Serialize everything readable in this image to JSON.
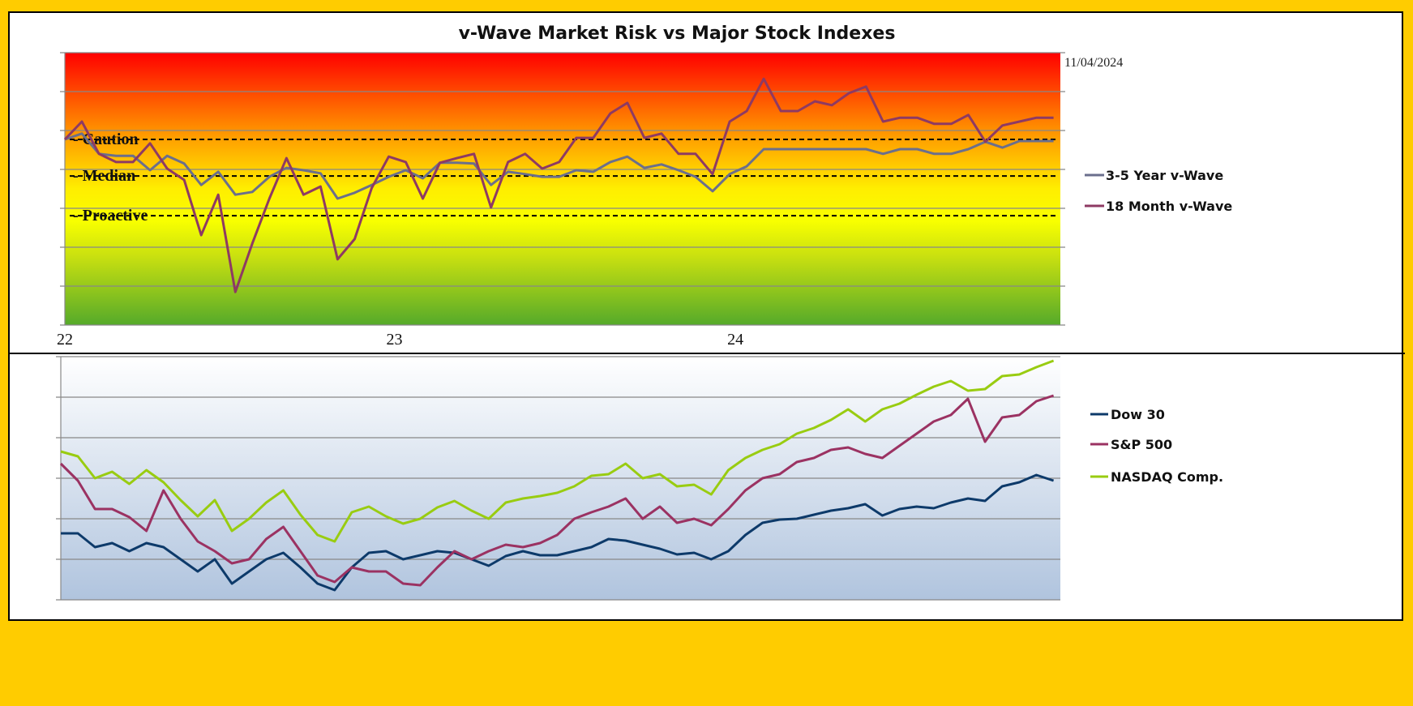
{
  "chart_data": [
    {
      "type": "line",
      "title": "v-Wave Market Risk vs Major Stock Indexes",
      "annotation_date": "11/04/2024",
      "x_tick_labels": [
        "22",
        "23",
        "24"
      ],
      "x_ticks": [
        22,
        23,
        24
      ],
      "x_start": 22.0,
      "x_step": 0.05,
      "xlim": [
        22.0,
        24.92
      ],
      "ylim": [
        0,
        7
      ],
      "y_tick_labels_shown": false,
      "grid": true,
      "background": "vertical gradient red (top) to yellow to green (bottom)",
      "legend_placement": "right",
      "reference_lines": [
        {
          "label": "Caution",
          "value": 4.77
        },
        {
          "label": "Median",
          "value": 3.83
        },
        {
          "label": "Proactive",
          "value": 2.81
        }
      ],
      "series": [
        {
          "name": "3-5 Year v-Wave",
          "color": "#6b6f8c",
          "values": [
            4.77,
            4.92,
            4.4,
            4.35,
            4.35,
            3.98,
            4.35,
            4.15,
            3.6,
            3.94,
            3.35,
            3.42,
            3.81,
            4.04,
            3.98,
            3.9,
            3.25,
            3.4,
            3.6,
            3.81,
            3.98,
            3.77,
            4.17,
            4.17,
            4.15,
            3.6,
            3.94,
            3.88,
            3.81,
            3.81,
            3.98,
            3.94,
            4.19,
            4.33,
            4.04,
            4.13,
            3.98,
            3.81,
            3.44,
            3.88,
            4.08,
            4.52,
            4.52,
            4.52,
            4.52,
            4.52,
            4.52,
            4.52,
            4.4,
            4.52,
            4.52,
            4.4,
            4.4,
            4.52,
            4.71,
            4.56,
            4.73,
            4.73,
            4.73
          ]
        },
        {
          "name": "18 Month v-Wave",
          "color": "#8e3a63",
          "values": [
            4.77,
            5.23,
            4.4,
            4.19,
            4.19,
            4.67,
            4.02,
            3.73,
            2.31,
            3.35,
            0.85,
            2.1,
            3.25,
            4.29,
            3.35,
            3.56,
            1.69,
            2.21,
            3.52,
            4.33,
            4.19,
            3.25,
            4.17,
            4.29,
            4.4,
            3.02,
            4.19,
            4.4,
            4.02,
            4.19,
            4.81,
            4.81,
            5.44,
            5.71,
            4.81,
            4.92,
            4.4,
            4.4,
            3.88,
            5.23,
            5.5,
            6.33,
            5.5,
            5.5,
            5.75,
            5.65,
            5.96,
            6.13,
            5.23,
            5.33,
            5.33,
            5.17,
            5.17,
            5.4,
            4.71,
            5.13,
            5.23,
            5.33,
            5.33
          ]
        }
      ]
    },
    {
      "type": "line",
      "x_start": 22.0,
      "x_step": 0.05,
      "xlim": [
        22.0,
        24.92
      ],
      "ylim": [
        0,
        6
      ],
      "y_tick_labels_shown": false,
      "grid": true,
      "background": "vertical gradient white (top) to light steel blue (bottom)",
      "legend_placement": "right",
      "series": [
        {
          "name": "Dow 30",
          "color": "#0d3a6a",
          "values": [
            1.64,
            1.64,
            1.3,
            1.4,
            1.2,
            1.4,
            1.3,
            1.0,
            0.7,
            1.0,
            0.4,
            0.7,
            1.0,
            1.16,
            0.8,
            0.4,
            0.24,
            0.8,
            1.16,
            1.2,
            1.0,
            1.1,
            1.2,
            1.16,
            1.0,
            0.84,
            1.08,
            1.2,
            1.1,
            1.1,
            1.2,
            1.3,
            1.5,
            1.46,
            1.36,
            1.26,
            1.12,
            1.16,
            1.0,
            1.2,
            1.6,
            1.9,
            1.98,
            2.0,
            2.1,
            2.2,
            2.26,
            2.36,
            2.08,
            2.24,
            2.3,
            2.26,
            2.4,
            2.5,
            2.44,
            2.8,
            2.9,
            3.08,
            2.94
          ]
        },
        {
          "name": "S&P 500",
          "color": "#9b3262",
          "values": [
            3.36,
            2.94,
            2.24,
            2.24,
            2.04,
            1.7,
            2.7,
            2.0,
            1.44,
            1.2,
            0.9,
            1.0,
            1.5,
            1.8,
            1.2,
            0.6,
            0.44,
            0.8,
            0.7,
            0.7,
            0.4,
            0.36,
            0.8,
            1.2,
            1.0,
            1.2,
            1.36,
            1.3,
            1.4,
            1.6,
            2.0,
            2.16,
            2.3,
            2.5,
            2.0,
            2.3,
            1.9,
            2.0,
            1.84,
            2.24,
            2.7,
            3.0,
            3.1,
            3.4,
            3.5,
            3.7,
            3.76,
            3.6,
            3.5,
            3.8,
            4.1,
            4.4,
            4.56,
            4.96,
            3.9,
            4.5,
            4.56,
            4.9,
            5.04
          ]
        },
        {
          "name": "NASDAQ Comp.",
          "color": "#99cc11",
          "values": [
            3.66,
            3.54,
            3.0,
            3.16,
            2.86,
            3.2,
            2.9,
            2.46,
            2.06,
            2.46,
            1.7,
            2.0,
            2.4,
            2.7,
            2.1,
            1.6,
            1.44,
            2.16,
            2.3,
            2.06,
            1.88,
            2.0,
            2.28,
            2.44,
            2.2,
            2.0,
            2.4,
            2.5,
            2.56,
            2.64,
            2.8,
            3.06,
            3.1,
            3.36,
            3.0,
            3.1,
            2.8,
            2.84,
            2.6,
            3.2,
            3.5,
            3.7,
            3.84,
            4.1,
            4.24,
            4.44,
            4.7,
            4.4,
            4.7,
            4.84,
            5.06,
            5.26,
            5.4,
            5.16,
            5.2,
            5.52,
            5.56,
            5.74,
            5.9
          ]
        }
      ]
    }
  ]
}
